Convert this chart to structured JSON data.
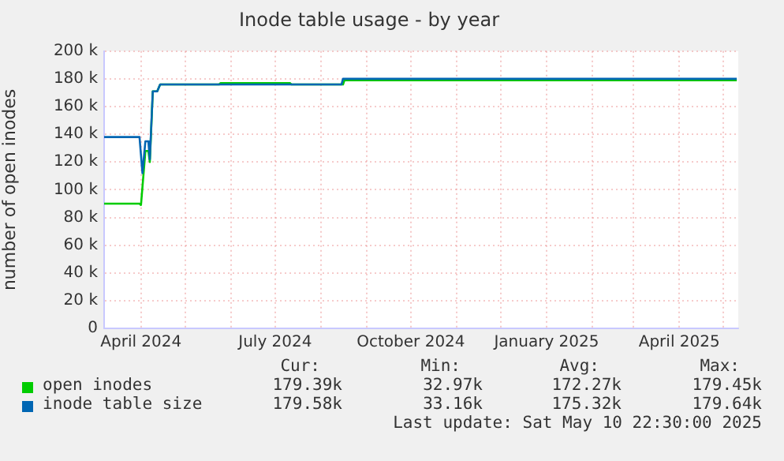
{
  "chart_data": {
    "type": "line",
    "title": "Inode table usage - by year",
    "ylabel": "number of open inodes",
    "xlim": [
      "2024-03-07",
      "2025-05-11"
    ],
    "xticks": [
      {
        "value": "2024-04-01",
        "label": "April 2024"
      },
      {
        "value": "2024-05-01",
        "label": null
      },
      {
        "value": "2024-06-01",
        "label": null
      },
      {
        "value": "2024-07-01",
        "label": "July 2024"
      },
      {
        "value": "2024-08-01",
        "label": null
      },
      {
        "value": "2024-09-01",
        "label": null
      },
      {
        "value": "2024-10-01",
        "label": "October 2024"
      },
      {
        "value": "2024-11-01",
        "label": null
      },
      {
        "value": "2024-12-01",
        "label": null
      },
      {
        "value": "2025-01-01",
        "label": "January 2025"
      },
      {
        "value": "2025-02-01",
        "label": null
      },
      {
        "value": "2025-03-01",
        "label": null
      },
      {
        "value": "2025-04-01",
        "label": "April 2025"
      },
      {
        "value": "2025-05-01",
        "label": null
      }
    ],
    "ylim": [
      0,
      200
    ],
    "yticks": [
      {
        "value": 0,
        "label": "0"
      },
      {
        "value": 20,
        "label": "20 k"
      },
      {
        "value": 40,
        "label": "40 k"
      },
      {
        "value": 60,
        "label": "60 k"
      },
      {
        "value": 80,
        "label": "80 k"
      },
      {
        "value": 100,
        "label": "100 k"
      },
      {
        "value": 120,
        "label": "120 k"
      },
      {
        "value": 140,
        "label": "140 k"
      },
      {
        "value": 160,
        "label": "160 k"
      },
      {
        "value": 180,
        "label": "180 k"
      },
      {
        "value": 200,
        "label": "200 k"
      }
    ],
    "grid": true,
    "legend": "bottom",
    "marker": "none",
    "line_style": "solid",
    "series": [
      {
        "name": "open inodes",
        "color": "#00cc00",
        "x": [
          "2024-03-07",
          "2024-03-31",
          "2024-04-01",
          "2024-04-04",
          "2024-04-06",
          "2024-04-07",
          "2024-04-09",
          "2024-04-12",
          "2024-04-14",
          "2024-05-24",
          "2024-05-25",
          "2024-07-11",
          "2024-07-12",
          "2024-08-16",
          "2024-08-17",
          "2025-05-10"
        ],
        "values": [
          90,
          90,
          89,
          128,
          128,
          120,
          171,
          171,
          176,
          176,
          177,
          177,
          176,
          176,
          179,
          179
        ]
      },
      {
        "name": "inode table size",
        "color": "#0066b3",
        "x": [
          "2024-03-07",
          "2024-03-31",
          "2024-04-02",
          "2024-04-04",
          "2024-04-06",
          "2024-04-07",
          "2024-04-09",
          "2024-04-12",
          "2024-04-14",
          "2024-08-15",
          "2024-08-16",
          "2025-05-10"
        ],
        "values": [
          138,
          138,
          112,
          135,
          135,
          122,
          171,
          171,
          176,
          176,
          180,
          180
        ]
      }
    ],
    "annotations": [
      "Cur:",
      "Min:",
      "Avg:",
      "Max:",
      "179.39k",
      "32.97k",
      "172.27k",
      "179.45k",
      "179.58k",
      "33.16k",
      "175.32k",
      "179.64k",
      "Last update: Sat May 10 22:30:00 2025"
    ]
  }
}
